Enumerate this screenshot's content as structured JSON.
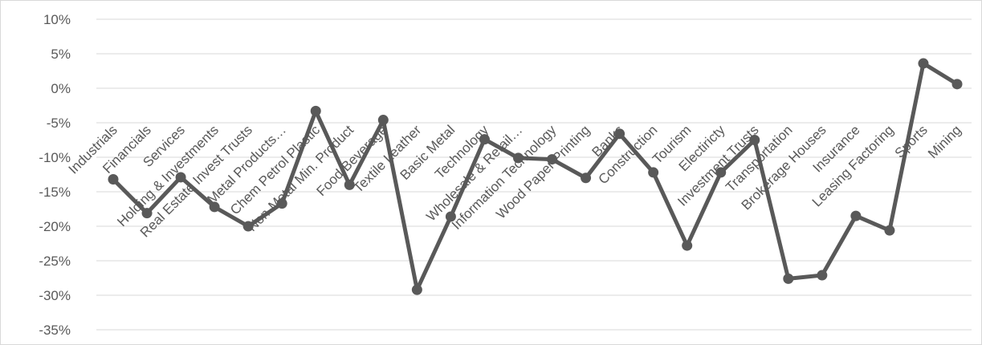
{
  "chart_data": {
    "type": "line",
    "title": "",
    "xlabel": "",
    "ylabel": "",
    "ylim": [
      -0.35,
      0.1
    ],
    "y_ticks": [
      "10%",
      "5%",
      "0%",
      "-5%",
      "-10%",
      "-15%",
      "-20%",
      "-25%",
      "-30%",
      "-35%"
    ],
    "y_tick_values": [
      0.1,
      0.05,
      0.0,
      -0.05,
      -0.1,
      -0.15,
      -0.2,
      -0.25,
      -0.3,
      -0.35
    ],
    "grid": true,
    "legend": "none",
    "series_color": "#595959",
    "categories": [
      "Industrials",
      "Financials",
      "Services",
      "Holding & Investments",
      "Real Estate Invest Trusts",
      "Metal Products…",
      "Chem Petrol Plastic",
      "Non-Metal Min. Product",
      "Food Beverage",
      "Textile Leather",
      "Basic Metal",
      "Technology",
      "Wholesale & Retail…",
      "Information Technology",
      "Wood Paper Printing",
      "Banks",
      "Construction",
      "Tourism",
      "Electiricty",
      "Investment Trusts",
      "Transportation",
      "Brokerage Houses",
      "Insurance",
      "Leasing Factoring",
      "Sports",
      "Mining"
    ],
    "series": [
      {
        "values": [
          -0.132,
          -0.181,
          -0.129,
          -0.172,
          -0.2,
          -0.167,
          -0.033,
          -0.14,
          -0.046,
          -0.292,
          -0.186,
          -0.074,
          -0.101,
          -0.103,
          -0.13,
          -0.066,
          -0.122,
          -0.228,
          -0.122,
          -0.075,
          -0.276,
          -0.271,
          -0.185,
          -0.206,
          0.036,
          0.006
        ]
      }
    ]
  }
}
